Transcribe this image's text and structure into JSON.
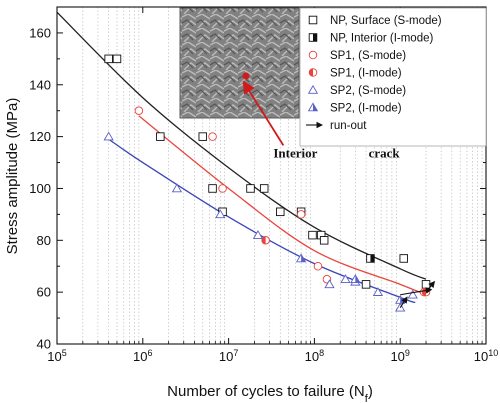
{
  "chart_data": {
    "type": "scatter",
    "x_scale": "log",
    "x_ticks": [
      {
        "value": 100000,
        "base": "10",
        "exp": "5"
      },
      {
        "value": 1000000,
        "base": "10",
        "exp": "6"
      },
      {
        "value": 10000000,
        "base": "10",
        "exp": "7"
      },
      {
        "value": 100000000,
        "base": "10",
        "exp": "8"
      },
      {
        "value": 1000000000,
        "base": "10",
        "exp": "9"
      },
      {
        "value": 10000000000,
        "base": "10",
        "exp": "10"
      }
    ],
    "xlim": [
      100000,
      10000000000
    ],
    "ylim": [
      40,
      170
    ],
    "y_ticks": [
      40,
      60,
      80,
      100,
      120,
      140,
      160
    ],
    "xlabel": "Number of cycles to failure (N",
    "xlabel_sub": "f",
    "xlabel_end": ")",
    "ylabel": "Stress amplitude (MPa)",
    "grid": "dotted vertical minor lines",
    "legend_position": "top-right",
    "series": [
      {
        "name": "NP, Surface (S-mode)",
        "marker": "square-open",
        "color": "#111111",
        "points": [
          [
            400000,
            150
          ],
          [
            500000,
            150
          ],
          [
            1600000,
            120
          ],
          [
            5000000,
            120
          ],
          [
            6500000,
            100
          ],
          [
            8500000,
            91
          ],
          [
            18000000,
            100
          ],
          [
            26000000,
            100
          ],
          [
            40000000,
            91
          ],
          [
            70000000,
            91
          ],
          [
            95000000,
            82
          ],
          [
            120000000,
            82
          ],
          [
            130000000,
            80
          ],
          [
            400000000,
            63
          ],
          [
            1100000000,
            73
          ],
          [
            2000000000,
            63
          ]
        ]
      },
      {
        "name": "NP, Interior (I-mode)",
        "marker": "square-half",
        "color": "#111111",
        "points": [
          [
            450000000,
            73
          ]
        ]
      },
      {
        "name": "SP1, (S-mode)",
        "marker": "circle-open",
        "color": "#e8453c",
        "points": [
          [
            900000,
            130
          ],
          [
            6500000,
            120
          ],
          [
            8500000,
            100
          ],
          [
            70000000,
            90
          ],
          [
            110000000,
            70
          ],
          [
            140000000,
            65
          ],
          [
            1900000000,
            60
          ]
        ]
      },
      {
        "name": "SP1, (I-mode)",
        "marker": "circle-half",
        "color": "#e8453c",
        "points": [
          [
            27000000,
            80
          ],
          [
            2000000000,
            60
          ]
        ]
      },
      {
        "name": "SP2, (S-mode)",
        "marker": "triangle-open",
        "color": "#5b5fc7",
        "points": [
          [
            400000,
            120
          ],
          [
            2500000,
            100
          ],
          [
            8000000,
            90
          ],
          [
            22000000,
            82
          ],
          [
            150000000,
            63
          ],
          [
            230000000,
            65
          ],
          [
            300000000,
            64
          ],
          [
            550000000,
            60
          ],
          [
            1000000000,
            54
          ],
          [
            1400000000,
            59
          ]
        ]
      },
      {
        "name": "SP2, (I-mode)",
        "marker": "triangle-half",
        "color": "#5b5fc7",
        "points": [
          [
            70000000,
            73
          ],
          [
            300000000,
            65
          ],
          [
            1000000000,
            57
          ]
        ]
      }
    ],
    "runout": {
      "name": "run-out",
      "arrows": [
        [
          1000000000,
          59,
          2300000000,
          61
        ],
        [
          1000000000,
          54,
          1200000000,
          58
        ],
        [
          2000000000,
          60,
          2500000000,
          64
        ]
      ]
    },
    "fit_curves": [
      {
        "color": "#222222",
        "points": [
          [
            100000,
            168
          ],
          [
            1000000,
            135
          ],
          [
            10000000,
            108
          ],
          [
            100000000,
            85
          ],
          [
            1000000000,
            69
          ],
          [
            2000000000,
            65
          ]
        ]
      },
      {
        "color": "#e8453c",
        "points": [
          [
            900000,
            128
          ],
          [
            10000000,
            100
          ],
          [
            100000000,
            76
          ],
          [
            1000000000,
            63
          ],
          [
            2000000000,
            59
          ]
        ]
      },
      {
        "color": "#3a45b8",
        "points": [
          [
            400000,
            119
          ],
          [
            1000000,
            110
          ],
          [
            10000000,
            89
          ],
          [
            100000000,
            71
          ],
          [
            1000000000,
            58
          ],
          [
            1500000000,
            56
          ]
        ]
      }
    ],
    "annotations": [
      {
        "text": "Interior",
        "at": [
          60000000,
          112
        ],
        "arrow_to": [
          15000000,
          141
        ]
      },
      {
        "text": "crack",
        "at": [
          650000000,
          112
        ]
      }
    ],
    "inset": {
      "description_icon": "fractograph-image",
      "colors": [
        "#3a3a3a",
        "#9a9a9a",
        "#d8d8d8"
      ],
      "marker_color": "#d11a1a"
    }
  }
}
